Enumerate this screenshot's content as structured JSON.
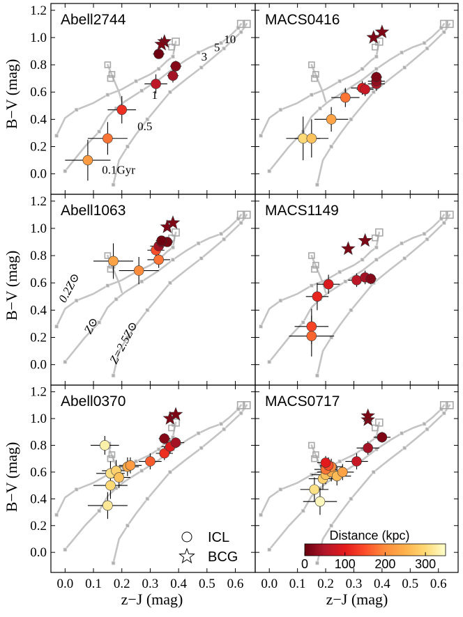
{
  "figure": {
    "xlabel": "z−J (mag)",
    "ylabel": "B−V (mag)",
    "xlim": [
      -0.05,
      0.67
    ],
    "ylim": [
      -0.15,
      1.25
    ],
    "xticks": [
      0.0,
      0.1,
      0.2,
      0.3,
      0.4,
      0.5,
      0.6
    ],
    "yticks": [
      0.0,
      0.2,
      0.4,
      0.6,
      0.8,
      1.0,
      1.2
    ]
  },
  "legend": {
    "icl_label": "ICL",
    "bcg_label": "BCG"
  },
  "colorbar": {
    "title": "Distance (kpc)",
    "ticks": [
      "0",
      "100",
      "200",
      "300"
    ],
    "range": [
      0,
      350
    ],
    "colors": [
      "#67000d",
      "#b2182b",
      "#e31a1c",
      "#fc4e2a",
      "#fd8d3c",
      "#feb24c",
      "#fed976",
      "#ffffcc"
    ]
  },
  "tracks": {
    "metallicity_labels": [
      "0.2Z⊙",
      "Z⊙",
      "Z=2.5Z⊙"
    ],
    "age_labels": [
      "0.1Gyr",
      "0.5",
      "1",
      "3",
      "5",
      "10"
    ]
  },
  "chart_data": [
    {
      "type": "scatter",
      "title": "Abell2744",
      "xlabel": "z−J (mag)",
      "ylabel": "B−V (mag)",
      "xlim": [
        -0.05,
        0.67
      ],
      "ylim": [
        -0.15,
        1.25
      ],
      "icl": [
        {
          "x": 0.08,
          "y": 0.1,
          "xerr": 0.08,
          "yerr": 0.15,
          "dist": 220
        },
        {
          "x": 0.15,
          "y": 0.26,
          "xerr": 0.07,
          "yerr": 0.12,
          "dist": 180
        },
        {
          "x": 0.2,
          "y": 0.47,
          "xerr": 0.05,
          "yerr": 0.1,
          "dist": 120
        },
        {
          "x": 0.32,
          "y": 0.66,
          "xerr": 0.04,
          "yerr": 0.07,
          "dist": 60
        },
        {
          "x": 0.38,
          "y": 0.72,
          "xerr": 0.02,
          "yerr": 0.05,
          "dist": 40
        },
        {
          "x": 0.39,
          "y": 0.79,
          "xerr": 0.02,
          "yerr": 0.04,
          "dist": 20
        },
        {
          "x": 0.33,
          "y": 0.88,
          "xerr": 0.02,
          "yerr": 0.03,
          "dist": 5
        }
      ],
      "bcg": [
        {
          "x": 0.35,
          "y": 0.97,
          "dist": 0
        },
        {
          "x": 0.34,
          "y": 0.95,
          "dist": 0
        }
      ]
    },
    {
      "type": "scatter",
      "title": "MACS0416",
      "xlabel": "z−J (mag)",
      "ylabel": "B−V (mag)",
      "xlim": [
        -0.05,
        0.67
      ],
      "ylim": [
        -0.15,
        1.25
      ],
      "icl": [
        {
          "x": 0.12,
          "y": 0.26,
          "xerr": 0.06,
          "yerr": 0.16,
          "dist": 300
        },
        {
          "x": 0.15,
          "y": 0.26,
          "xerr": 0.06,
          "yerr": 0.14,
          "dist": 270
        },
        {
          "x": 0.22,
          "y": 0.4,
          "xerr": 0.06,
          "yerr": 0.09,
          "dist": 230
        },
        {
          "x": 0.27,
          "y": 0.56,
          "xerr": 0.05,
          "yerr": 0.07,
          "dist": 180
        },
        {
          "x": 0.33,
          "y": 0.63,
          "xerr": 0.04,
          "yerr": 0.05,
          "dist": 100
        },
        {
          "x": 0.34,
          "y": 0.62,
          "xerr": 0.03,
          "yerr": 0.05,
          "dist": 70
        },
        {
          "x": 0.38,
          "y": 0.66,
          "xerr": 0.03,
          "yerr": 0.05,
          "dist": 50
        },
        {
          "x": 0.38,
          "y": 0.68,
          "xerr": 0.03,
          "yerr": 0.05,
          "dist": 30
        },
        {
          "x": 0.38,
          "y": 0.71,
          "xerr": 0.02,
          "yerr": 0.04,
          "dist": 15
        }
      ],
      "bcg": [
        {
          "x": 0.37,
          "y": 1.0,
          "dist": 0
        },
        {
          "x": 0.4,
          "y": 1.04,
          "dist": 0
        }
      ]
    },
    {
      "type": "scatter",
      "title": "Abell1063",
      "xlabel": "z−J (mag)",
      "ylabel": "B−V (mag)",
      "xlim": [
        -0.05,
        0.67
      ],
      "ylim": [
        -0.15,
        1.25
      ],
      "icl": [
        {
          "x": 0.17,
          "y": 0.76,
          "xerr": 0.07,
          "yerr": 0.13,
          "dist": 230
        },
        {
          "x": 0.26,
          "y": 0.69,
          "xerr": 0.07,
          "yerr": 0.1,
          "dist": 200
        },
        {
          "x": 0.33,
          "y": 0.77,
          "xerr": 0.04,
          "yerr": 0.06,
          "dist": 180
        },
        {
          "x": 0.32,
          "y": 0.84,
          "xerr": 0.03,
          "yerr": 0.05,
          "dist": 150
        },
        {
          "x": 0.33,
          "y": 0.87,
          "xerr": 0.03,
          "yerr": 0.04,
          "dist": 40
        },
        {
          "x": 0.34,
          "y": 0.9,
          "xerr": 0.02,
          "yerr": 0.04,
          "dist": 20
        },
        {
          "x": 0.36,
          "y": 0.9,
          "xerr": 0.02,
          "yerr": 0.03,
          "dist": 10
        },
        {
          "x": 0.34,
          "y": 0.91,
          "xerr": 0.02,
          "yerr": 0.03,
          "dist": 5
        }
      ],
      "bcg": [
        {
          "x": 0.36,
          "y": 1.01,
          "dist": 0
        },
        {
          "x": 0.38,
          "y": 1.04,
          "dist": 0
        }
      ]
    },
    {
      "type": "scatter",
      "title": "MACS1149",
      "xlabel": "z−J (mag)",
      "ylabel": "B−V (mag)",
      "xlim": [
        -0.05,
        0.67
      ],
      "ylim": [
        -0.15,
        1.25
      ],
      "icl": [
        {
          "x": 0.15,
          "y": 0.21,
          "xerr": 0.08,
          "yerr": 0.15,
          "dist": 170
        },
        {
          "x": 0.15,
          "y": 0.28,
          "xerr": 0.06,
          "yerr": 0.13,
          "dist": 140
        },
        {
          "x": 0.17,
          "y": 0.5,
          "xerr": 0.04,
          "yerr": 0.1,
          "dist": 110
        },
        {
          "x": 0.21,
          "y": 0.59,
          "xerr": 0.04,
          "yerr": 0.07,
          "dist": 90
        },
        {
          "x": 0.31,
          "y": 0.62,
          "xerr": 0.03,
          "yerr": 0.05,
          "dist": 60
        },
        {
          "x": 0.34,
          "y": 0.64,
          "xerr": 0.03,
          "yerr": 0.05,
          "dist": 40
        },
        {
          "x": 0.36,
          "y": 0.63,
          "xerr": 0.02,
          "yerr": 0.04,
          "dist": 20
        }
      ],
      "bcg": [
        {
          "x": 0.28,
          "y": 0.85,
          "dist": 0
        },
        {
          "x": 0.34,
          "y": 0.91,
          "dist": 0
        }
      ]
    },
    {
      "type": "scatter",
      "title": "Abell0370",
      "xlabel": "z−J (mag)",
      "ylabel": "B−V (mag)",
      "xlim": [
        -0.05,
        0.67
      ],
      "ylim": [
        -0.15,
        1.25
      ],
      "icl": [
        {
          "x": 0.15,
          "y": 0.35,
          "xerr": 0.07,
          "yerr": 0.1,
          "dist": 320
        },
        {
          "x": 0.16,
          "y": 0.5,
          "xerr": 0.06,
          "yerr": 0.1,
          "dist": 300
        },
        {
          "x": 0.16,
          "y": 0.59,
          "xerr": 0.05,
          "yerr": 0.09,
          "dist": 310
        },
        {
          "x": 0.18,
          "y": 0.61,
          "xerr": 0.05,
          "yerr": 0.08,
          "dist": 290
        },
        {
          "x": 0.19,
          "y": 0.56,
          "xerr": 0.04,
          "yerr": 0.08,
          "dist": 270
        },
        {
          "x": 0.22,
          "y": 0.64,
          "xerr": 0.04,
          "yerr": 0.07,
          "dist": 240
        },
        {
          "x": 0.23,
          "y": 0.65,
          "xerr": 0.04,
          "yerr": 0.06,
          "dist": 220
        },
        {
          "x": 0.14,
          "y": 0.8,
          "xerr": 0.05,
          "yerr": 0.07,
          "dist": 330
        },
        {
          "x": 0.3,
          "y": 0.68,
          "xerr": 0.04,
          "yerr": 0.06,
          "dist": 160
        },
        {
          "x": 0.35,
          "y": 0.74,
          "xerr": 0.03,
          "yerr": 0.05,
          "dist": 120
        },
        {
          "x": 0.37,
          "y": 0.79,
          "xerr": 0.03,
          "yerr": 0.05,
          "dist": 90
        },
        {
          "x": 0.39,
          "y": 0.82,
          "xerr": 0.03,
          "yerr": 0.04,
          "dist": 40
        },
        {
          "x": 0.35,
          "y": 0.85,
          "xerr": 0.02,
          "yerr": 0.04,
          "dist": 20
        }
      ],
      "bcg": [
        {
          "x": 0.37,
          "y": 1.0,
          "dist": 0
        },
        {
          "x": 0.39,
          "y": 1.03,
          "dist": 0
        }
      ]
    },
    {
      "type": "scatter",
      "title": "MACS0717",
      "xlabel": "z−J (mag)",
      "ylabel": "B−V (mag)",
      "xlim": [
        -0.05,
        0.67
      ],
      "ylim": [
        -0.15,
        1.25
      ],
      "icl": [
        {
          "x": 0.18,
          "y": 0.38,
          "xerr": 0.06,
          "yerr": 0.1,
          "dist": 340
        },
        {
          "x": 0.16,
          "y": 0.47,
          "xerr": 0.05,
          "yerr": 0.09,
          "dist": 310
        },
        {
          "x": 0.19,
          "y": 0.55,
          "xerr": 0.05,
          "yerr": 0.08,
          "dist": 290
        },
        {
          "x": 0.2,
          "y": 0.58,
          "xerr": 0.05,
          "yerr": 0.07,
          "dist": 270
        },
        {
          "x": 0.22,
          "y": 0.6,
          "xerr": 0.05,
          "yerr": 0.07,
          "dist": 240
        },
        {
          "x": 0.22,
          "y": 0.64,
          "xerr": 0.04,
          "yerr": 0.06,
          "dist": 200
        },
        {
          "x": 0.2,
          "y": 0.62,
          "xerr": 0.04,
          "yerr": 0.06,
          "dist": 180
        },
        {
          "x": 0.24,
          "y": 0.57,
          "xerr": 0.05,
          "yerr": 0.07,
          "dist": 260
        },
        {
          "x": 0.26,
          "y": 0.6,
          "xerr": 0.04,
          "yerr": 0.06,
          "dist": 230
        },
        {
          "x": 0.21,
          "y": 0.65,
          "xerr": 0.03,
          "yerr": 0.06,
          "dist": 150
        },
        {
          "x": 0.2,
          "y": 0.67,
          "xerr": 0.03,
          "yerr": 0.05,
          "dist": 100
        },
        {
          "x": 0.31,
          "y": 0.68,
          "xerr": 0.04,
          "yerr": 0.06,
          "dist": 70
        },
        {
          "x": 0.35,
          "y": 0.78,
          "xerr": 0.04,
          "yerr": 0.05,
          "dist": 40
        },
        {
          "x": 0.4,
          "y": 0.86,
          "xerr": 0.03,
          "yerr": 0.04,
          "dist": 15
        }
      ],
      "bcg": [
        {
          "x": 0.35,
          "y": 0.99,
          "dist": 0
        },
        {
          "x": 0.35,
          "y": 1.02,
          "dist": 0
        }
      ]
    }
  ],
  "model_tracks": [
    {
      "name": "0.2Z⊙",
      "points": [
        [
          -0.03,
          0.28
        ],
        [
          0.0,
          0.41
        ],
        [
          0.04,
          0.47
        ],
        [
          0.1,
          0.52
        ],
        [
          0.15,
          0.58
        ],
        [
          0.2,
          0.62
        ],
        [
          0.25,
          0.68
        ],
        [
          0.3,
          0.73
        ],
        [
          0.33,
          0.77
        ],
        [
          0.36,
          0.83
        ],
        [
          0.38,
          0.86
        ],
        [
          0.385,
          0.92
        ],
        [
          0.39,
          0.97
        ]
      ]
    },
    {
      "name": "Z⊙",
      "points": [
        [
          0.0,
          0.02
        ],
        [
          0.07,
          0.2
        ],
        [
          0.12,
          0.31
        ],
        [
          0.15,
          0.42
        ],
        [
          0.18,
          0.48
        ],
        [
          0.21,
          0.53
        ],
        [
          0.27,
          0.61
        ],
        [
          0.33,
          0.69
        ],
        [
          0.38,
          0.77
        ],
        [
          0.43,
          0.84
        ],
        [
          0.47,
          0.89
        ],
        [
          0.51,
          0.93
        ],
        [
          0.55,
          0.96
        ],
        [
          0.58,
          1.01
        ],
        [
          0.61,
          1.07
        ],
        [
          0.62,
          1.1
        ]
      ]
    },
    {
      "name": "Z=2.5Z⊙",
      "points": [
        [
          0.17,
          -0.08
        ],
        [
          0.19,
          0.1
        ],
        [
          0.22,
          0.2
        ],
        [
          0.25,
          0.29
        ],
        [
          0.29,
          0.4
        ],
        [
          0.33,
          0.5
        ],
        [
          0.37,
          0.6
        ],
        [
          0.43,
          0.7
        ],
        [
          0.48,
          0.78
        ],
        [
          0.52,
          0.85
        ],
        [
          0.56,
          0.92
        ],
        [
          0.59,
          0.98
        ],
        [
          0.62,
          1.04
        ],
        [
          0.64,
          1.1
        ]
      ]
    },
    {
      "name": "",
      "points": [
        [
          0.15,
          0.8
        ],
        [
          0.17,
          0.7
        ],
        [
          0.19,
          0.6
        ],
        [
          0.2,
          0.53
        ]
      ]
    }
  ]
}
